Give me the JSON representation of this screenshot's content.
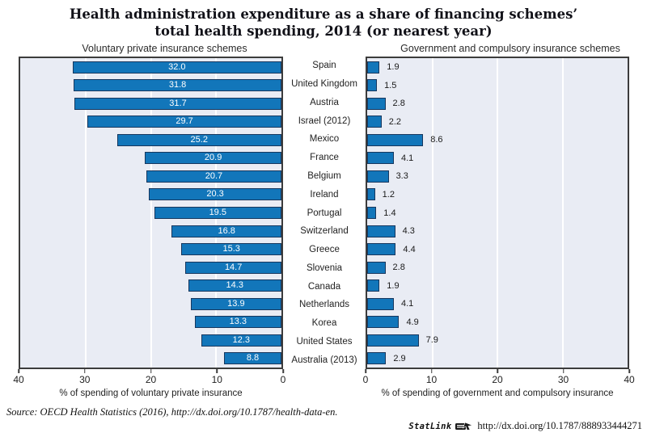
{
  "title": {
    "line1": "Health administration expenditure as a share of financing schemes’",
    "line2": "total health spending, 2014 (or nearest year)"
  },
  "panels": {
    "left": {
      "header": "Voluntary private insurance schemes",
      "axis_label": "% of spending of voluntary private insurance",
      "ticks": [
        40,
        30,
        20,
        10,
        0
      ]
    },
    "right": {
      "header": "Government and compulsory insurance schemes",
      "axis_label": "% of spending of government and compulsory insurance",
      "ticks": [
        0,
        10,
        20,
        30,
        40
      ]
    }
  },
  "chart_data": {
    "type": "bar",
    "orientation": "horizontal",
    "categories": [
      "Spain",
      "United Kingdom",
      "Austria",
      "Israel (2012)",
      "Mexico",
      "France",
      "Belgium",
      "Ireland",
      "Portugal",
      "Switzerland",
      "Greece",
      "Slovenia",
      "Canada",
      "Netherlands",
      "Korea",
      "United States",
      "Australia (2013)"
    ],
    "series": [
      {
        "name": "Voluntary private insurance schemes",
        "direction": "right-to-left",
        "values": [
          32.0,
          31.8,
          31.7,
          29.7,
          25.2,
          20.9,
          20.7,
          20.3,
          19.5,
          16.8,
          15.3,
          14.7,
          14.3,
          13.9,
          13.3,
          12.3,
          8.8
        ]
      },
      {
        "name": "Government and compulsory insurance schemes",
        "direction": "left-to-right",
        "values": [
          1.9,
          1.5,
          2.8,
          2.2,
          8.6,
          4.1,
          3.3,
          1.2,
          1.4,
          4.3,
          4.4,
          2.8,
          1.9,
          4.1,
          4.9,
          7.9,
          2.9
        ]
      }
    ],
    "xlim": [
      0,
      40
    ],
    "gridline_values": [
      30,
      20,
      10
    ],
    "grid": true,
    "legend_position": "none",
    "bar_color": "#1276ba",
    "bar_border_color": "#17375e",
    "plot_bg_color": "#e9ecf4",
    "grid_color": "#ffffff",
    "value_label_style": {
      "left_panel": "inside-white",
      "right_panel": "outside-black"
    }
  },
  "footer": {
    "source_prefix": "Source:  OECD Health Statistics (2016), ",
    "source_url": "http://dx.doi.org/10.1787/health-data-en.",
    "statlink_label": "StatLink",
    "statlink_icon": "statlink-disk-icon",
    "statlink_url": "http://dx.doi.org/10.1787/888933444271"
  }
}
